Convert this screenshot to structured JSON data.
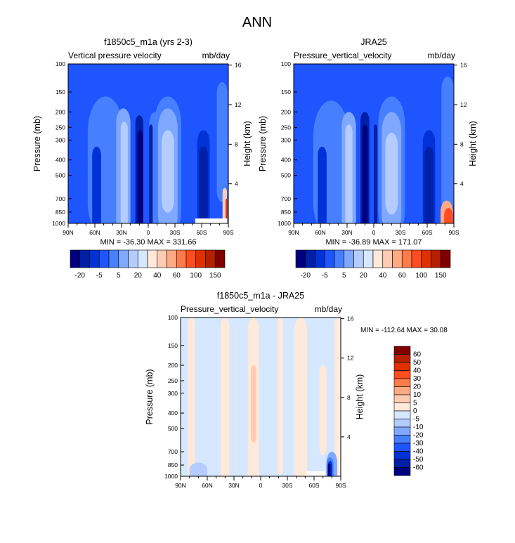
{
  "chart_data": {
    "type": "heatmap",
    "title": "ANN",
    "panels": [
      {
        "id": "model",
        "title": "f1850c5_m1a (yrs 2-3)",
        "left_label": "Vertical pressure velocity",
        "right_label": "mb/day",
        "stats": "MIN = -36.30  MAX = 331.66",
        "min": -36.3,
        "max": 331.66
      },
      {
        "id": "obs",
        "title": "JRA25",
        "left_label": "Pressure_vertical_velocity",
        "right_label": "mb/day",
        "stats": "MIN = -36.89  MAX = 171.07",
        "min": -36.89,
        "max": 171.07
      },
      {
        "id": "diff",
        "title": "f1850c5_m1a - JRA25",
        "left_label": "Pressure_vertical_velocity",
        "right_label": "mb/day",
        "stats": "MIN = -112.64  MAX =  30.08",
        "min": -112.64,
        "max": 30.08
      }
    ],
    "ylabel": "Pressure (mb)",
    "y2label": "Height (km)",
    "y_ticks": [
      "100",
      "150",
      "200",
      "250",
      "300",
      "400",
      "500",
      "700",
      "850",
      "1000"
    ],
    "y2_ticks": [
      "16",
      "12",
      "8",
      "4"
    ],
    "x_ticks": [
      "90N",
      "60N",
      "30N",
      "0",
      "30S",
      "60S",
      "90S"
    ],
    "colorbar_top": {
      "labels": [
        "-20",
        "-5",
        "5",
        "20",
        "40",
        "60",
        "100",
        "150"
      ],
      "colors": [
        "#00007f",
        "#0020a8",
        "#0032d8",
        "#1e55ff",
        "#4680ff",
        "#80a8ff",
        "#b4ccff",
        "#d6e8ff",
        "#ffe9d8",
        "#ffcbb2",
        "#ffaa82",
        "#ff7a4a",
        "#ff4c20",
        "#e03000",
        "#b52000",
        "#800000"
      ]
    },
    "colorbar_diff": {
      "labels": [
        "60",
        "50",
        "40",
        "30",
        "20",
        "10",
        "5",
        "0",
        "-5",
        "-10",
        "-20",
        "-30",
        "-40",
        "-50",
        "-60"
      ],
      "colors": [
        "#800000",
        "#b52000",
        "#e03000",
        "#ff4c20",
        "#ff7a4a",
        "#ffaa82",
        "#ffcbb2",
        "#ffe9d8",
        "#d6e8ff",
        "#b4ccff",
        "#80a8ff",
        "#4680ff",
        "#1e55ff",
        "#0032d8",
        "#0020a8",
        "#00007f"
      ]
    }
  }
}
